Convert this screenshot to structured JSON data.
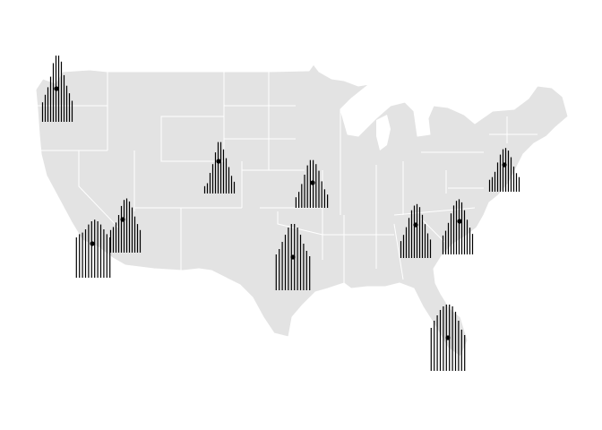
{
  "chart_data": {
    "type": "map-glyphs",
    "title": "",
    "land_color": "#e3e3e3",
    "border_color": "#ffffff",
    "mark_color": "#000000",
    "locations": [
      {
        "id": "seattle",
        "bars": [
          0.26,
          0.36,
          0.46,
          0.6,
          0.78,
          0.88,
          0.88,
          0.8,
          0.62,
          0.48,
          0.38,
          0.28
        ]
      },
      {
        "id": "denver",
        "bars": [
          0.1,
          0.14,
          0.28,
          0.4,
          0.56,
          0.7,
          0.7,
          0.6,
          0.48,
          0.36,
          0.24,
          0.16
        ]
      },
      {
        "id": "chicago",
        "bars": [
          0.16,
          0.24,
          0.36,
          0.5,
          0.64,
          0.72,
          0.72,
          0.66,
          0.56,
          0.4,
          0.28,
          0.2
        ]
      },
      {
        "id": "new-york",
        "bars": [
          0.18,
          0.22,
          0.3,
          0.44,
          0.56,
          0.64,
          0.66,
          0.62,
          0.52,
          0.38,
          0.28,
          0.22
        ]
      },
      {
        "id": "san-francisco",
        "bars": [
          0.5,
          0.54,
          0.56,
          0.6,
          0.66,
          0.7,
          0.72,
          0.7,
          0.66,
          0.6,
          0.54,
          0.5
        ]
      },
      {
        "id": "los-angeles",
        "bars": [
          0.3,
          0.34,
          0.4,
          0.5,
          0.62,
          0.7,
          0.72,
          0.68,
          0.6,
          0.48,
          0.38,
          0.3
        ]
      },
      {
        "id": "atlanta",
        "bars": [
          0.22,
          0.3,
          0.4,
          0.52,
          0.62,
          0.68,
          0.7,
          0.66,
          0.56,
          0.44,
          0.32,
          0.24
        ]
      },
      {
        "id": "charlotte",
        "bars": [
          0.24,
          0.3,
          0.4,
          0.52,
          0.62,
          0.68,
          0.7,
          0.66,
          0.56,
          0.44,
          0.34,
          0.26
        ]
      },
      {
        "id": "dallas",
        "bars": [
          0.4,
          0.46,
          0.54,
          0.62,
          0.7,
          0.74,
          0.74,
          0.7,
          0.62,
          0.52,
          0.44,
          0.38
        ]
      },
      {
        "id": "miami",
        "bars": [
          0.48,
          0.56,
          0.62,
          0.68,
          0.72,
          0.74,
          0.74,
          0.72,
          0.66,
          0.56,
          0.46,
          0.4
        ]
      }
    ]
  }
}
